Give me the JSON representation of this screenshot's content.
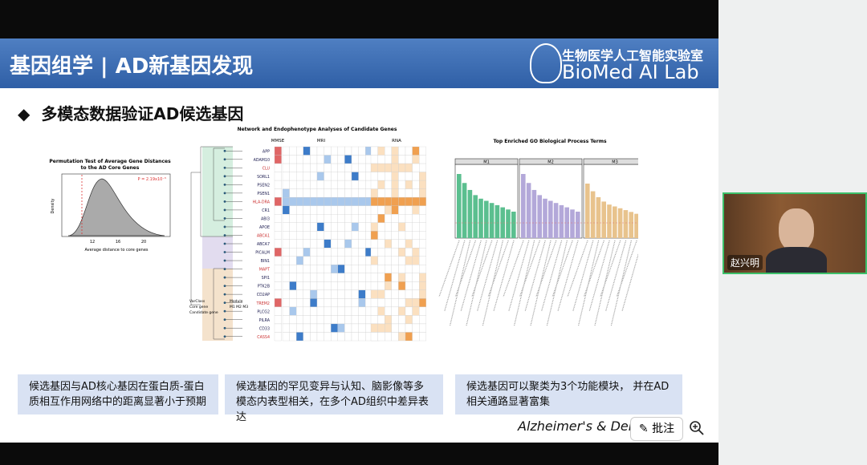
{
  "header": {
    "title": "基因组学 | AD新基因发现",
    "logo_cn": "生物医学人工智能实验室",
    "logo_en": "BioMed AI Lab"
  },
  "slide": {
    "subtitle": "多模态数据验证AD候选基因"
  },
  "figures": {
    "permutation": {
      "title_1": "Permutation Test of Average Gene Distances",
      "title_2": "to the AD Core Genes",
      "pvalue": "P = 2.19x10⁻⁵",
      "x_label": "Average distance to core genes",
      "y_label": "Density",
      "x_ticks": [
        "12",
        "16",
        "20"
      ]
    },
    "network": {
      "title": "Network and Endophenotype Analyses of Candidate Genes",
      "groups": [
        "MMSE",
        "MRI",
        "RNA"
      ],
      "genes": [
        "APP",
        "ADAM10",
        "CLU",
        "SORL1",
        "PSEN2",
        "PSEN1",
        "HLA-DRA",
        "CR1",
        "ABI3",
        "APOE",
        "ABCA1",
        "ABCA7",
        "PICALM",
        "BIN1",
        "MAPT",
        "SPI1",
        "PTK2B",
        "CD2AP",
        "TREM2",
        "PLCG2",
        "PILRA",
        "CD33",
        "CASS4"
      ],
      "legend": [
        "VarClass",
        "Core gene",
        "Candidate gene",
        "Module",
        "M1 M2 M3"
      ]
    },
    "go": {
      "title": "Top Enriched GO Biological Process Terms",
      "modules": [
        "M1",
        "M2",
        "M3"
      ]
    }
  },
  "captions": [
    "候选基因与AD核心基因在蛋白质-蛋白质相互作用网络中的距离显著小于预期",
    "候选基因的罕见变异与认知、脑影像等多模态内表型相关，在多个AD组织中差异表达",
    "候选基因可以聚类为3个功能模块， 并在AD相关通路显著富集"
  ],
  "citation": "Alzheimer's & Dem",
  "toolbar": {
    "annotate": "批注"
  },
  "video": {
    "name": "赵兴明"
  }
}
